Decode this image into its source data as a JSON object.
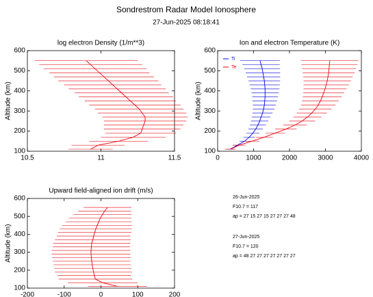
{
  "header": {
    "title": "Sondrestrom Radar Model Ionosphere",
    "subtitle": "27-Jun-2025 08:18:41"
  },
  "notes": [
    "26-Jun-2025",
    "F10.7 = 117",
    "ap = 27  15  27  15  27  27  27  48",
    "27-Jun-2025",
    "F10.7 = 120",
    "ap = 48  27  27  27  27  27  27  27"
  ],
  "chart_data": [
    {
      "type": "errorline",
      "title": "log electron Density (1/m**3)",
      "ylabel": "Altitude (km)",
      "xlim": [
        10.5,
        11.5
      ],
      "xticks": [
        10.5,
        11,
        11.5
      ],
      "ylim": [
        100,
        600
      ],
      "yticks": [
        100,
        200,
        300,
        400,
        500,
        600
      ],
      "y": [
        110,
        130,
        150,
        170,
        190,
        210,
        230,
        250,
        270,
        290,
        310,
        330,
        350,
        370,
        390,
        410,
        430,
        450,
        470,
        490,
        510,
        530,
        550
      ],
      "series": [
        {
          "color": "#e8000b",
          "values": [
            10.93,
            10.98,
            11.12,
            11.22,
            11.27,
            11.28,
            11.29,
            11.3,
            11.3,
            11.28,
            11.26,
            11.23,
            11.2,
            11.17,
            11.14,
            11.11,
            11.08,
            11.05,
            11.02,
            10.99,
            10.96,
            10.93,
            10.9
          ],
          "errors": [
            0.15,
            0.18,
            0.2,
            0.22,
            0.24,
            0.26,
            0.27,
            0.28,
            0.29,
            0.3,
            0.3,
            0.31,
            0.31,
            0.32,
            0.32,
            0.33,
            0.33,
            0.34,
            0.34,
            0.34,
            0.35,
            0.35,
            0.35
          ]
        }
      ]
    },
    {
      "type": "errorline",
      "title": "Ion and electron Temperature (K)",
      "ylabel": "Altitude (km)",
      "xlim": [
        0,
        4000
      ],
      "xticks": [
        0,
        1000,
        2000,
        3000,
        4000
      ],
      "ylim": [
        100,
        600
      ],
      "yticks": [
        100,
        200,
        300,
        400,
        500,
        600
      ],
      "legend": "upper left",
      "y": [
        110,
        130,
        150,
        170,
        190,
        210,
        230,
        250,
        270,
        290,
        310,
        330,
        350,
        370,
        390,
        410,
        430,
        450,
        470,
        490,
        510,
        530,
        550
      ],
      "series": [
        {
          "name": "Ti",
          "color": "#0000e0",
          "values": [
            350,
            550,
            750,
            880,
            980,
            1060,
            1120,
            1170,
            1210,
            1250,
            1280,
            1300,
            1310,
            1320,
            1320,
            1320,
            1310,
            1300,
            1280,
            1260,
            1240,
            1210,
            1180
          ],
          "errors": [
            100,
            120,
            140,
            160,
            180,
            200,
            220,
            240,
            260,
            280,
            300,
            320,
            340,
            360,
            380,
            400,
            420,
            440,
            460,
            480,
            500,
            520,
            550
          ]
        },
        {
          "name": "Te",
          "color": "#e8000b",
          "values": [
            350,
            600,
            950,
            1300,
            1600,
            1900,
            2150,
            2350,
            2500,
            2620,
            2720,
            2800,
            2860,
            2910,
            2950,
            2990,
            3020,
            3050,
            3070,
            3090,
            3100,
            3110,
            3120
          ],
          "errors": [
            150,
            180,
            210,
            240,
            270,
            300,
            330,
            360,
            390,
            420,
            450,
            480,
            510,
            540,
            570,
            600,
            630,
            660,
            690,
            720,
            750,
            780,
            800
          ]
        }
      ]
    },
    {
      "type": "errorline",
      "title": "Upward field-aligned ion drift (m/s)",
      "ylabel": "Altitude (km)",
      "xlim": [
        -200,
        200
      ],
      "xticks": [
        -200,
        -100,
        0,
        100,
        200
      ],
      "ylim": [
        100,
        600
      ],
      "yticks": [
        100,
        200,
        300,
        400,
        500,
        600
      ],
      "y": [
        110,
        130,
        150,
        170,
        190,
        210,
        230,
        250,
        270,
        290,
        310,
        330,
        350,
        370,
        390,
        410,
        430,
        450,
        470,
        490,
        510,
        530,
        550
      ],
      "series": [
        {
          "color": "#e8000b",
          "values": [
            45,
            5,
            -15,
            -18,
            -20,
            -22,
            -24,
            -25,
            -26,
            -27,
            -27,
            -26,
            -25,
            -22,
            -20,
            -17,
            -14,
            -10,
            -6,
            -2,
            4,
            10,
            18
          ],
          "errors": [
            80,
            95,
            100,
            100,
            105,
            105,
            105,
            105,
            107,
            107,
            107,
            105,
            105,
            103,
            100,
            100,
            98,
            95,
            90,
            85,
            80,
            72,
            65
          ]
        }
      ]
    }
  ]
}
